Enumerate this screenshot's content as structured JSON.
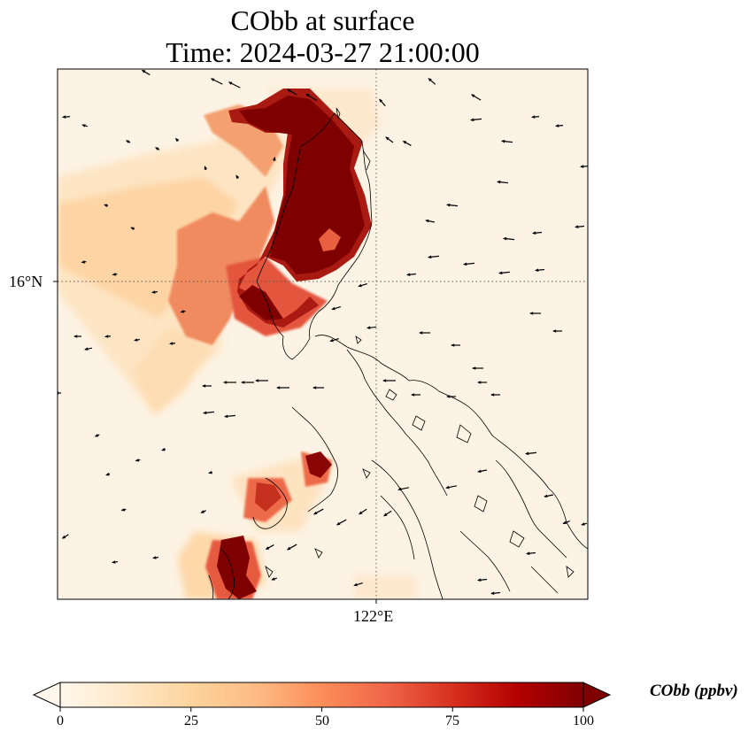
{
  "title": {
    "line1": "CObb at surface",
    "line2": "Time: 2024-03-27 21:00:00"
  },
  "axes": {
    "lat_tick": "16°N",
    "lon_tick": "122°E",
    "gridlines": "dotted"
  },
  "colorbar": {
    "label": "CObb (ppbv)",
    "ticks": [
      "0",
      "25",
      "50",
      "75",
      "100"
    ],
    "range": [
      0,
      100
    ],
    "colormap": [
      "#fff7ec",
      "#fee8c8",
      "#fdd49e",
      "#fdbb84",
      "#fc8d59",
      "#ef6548",
      "#d7301f",
      "#b30000",
      "#7f0000"
    ],
    "extend": "both"
  },
  "map": {
    "background": "#fdf3e4",
    "coastline_color": "#000000",
    "wind_arrow_color": "#000000"
  }
}
